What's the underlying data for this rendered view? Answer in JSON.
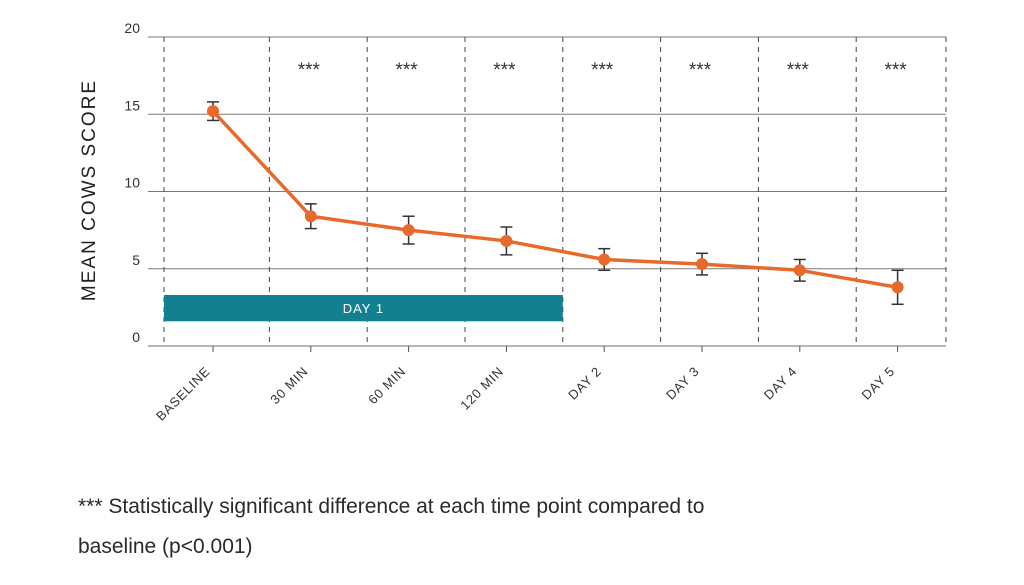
{
  "chart_data": {
    "type": "line",
    "ylabel": "MEAN COWS SCORE",
    "xlabel": "",
    "ylim": [
      0,
      20
    ],
    "yticks": [
      0,
      5,
      10,
      15,
      20
    ],
    "categories": [
      "BASELINE",
      "30 MIN",
      "60 MIN",
      "120 MIN",
      "DAY 2",
      "DAY 3",
      "DAY 4",
      "DAY 5"
    ],
    "series": [
      {
        "name": "",
        "color": "#e8692a",
        "values": [
          15.2,
          8.4,
          7.5,
          6.8,
          5.6,
          5.3,
          4.9,
          3.8
        ],
        "error": [
          0.6,
          0.8,
          0.9,
          0.9,
          0.7,
          0.7,
          0.7,
          1.1
        ]
      }
    ],
    "significance": [
      "",
      "***",
      "***",
      "***",
      "***",
      "***",
      "***",
      "***"
    ],
    "day1_bar": {
      "label": "DAY 1",
      "color": "#13808f",
      "y_from": 1.6,
      "y_to": 3.3,
      "spans_categories": [
        "BASELINE",
        "120 MIN"
      ]
    },
    "grid": true
  },
  "footnote": {
    "line1": "*** Statistically significant difference at each time point compared to",
    "line2": "baseline (p<0.001)"
  }
}
